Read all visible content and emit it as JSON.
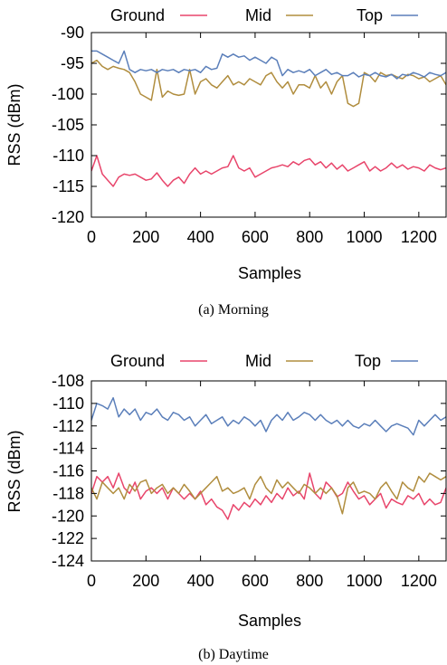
{
  "chart_data": [
    {
      "type": "line",
      "caption": "(a) Morning",
      "xlabel": "Samples",
      "ylabel": "RSS (dBm)",
      "xlim": [
        0,
        1300
      ],
      "ylim": [
        -120,
        -90
      ],
      "xticks": [
        0,
        200,
        400,
        600,
        800,
        1000,
        1200
      ],
      "yticks": [
        -90,
        -95,
        -100,
        -105,
        -110,
        -115,
        -120
      ],
      "legend_position": "top",
      "grid": false,
      "x": [
        0,
        20,
        40,
        60,
        80,
        100,
        120,
        140,
        160,
        180,
        200,
        220,
        240,
        260,
        280,
        300,
        320,
        340,
        360,
        380,
        400,
        420,
        440,
        460,
        480,
        500,
        520,
        540,
        560,
        580,
        600,
        620,
        640,
        660,
        680,
        700,
        720,
        740,
        760,
        780,
        800,
        820,
        840,
        860,
        880,
        900,
        920,
        940,
        960,
        980,
        1000,
        1020,
        1040,
        1060,
        1080,
        1100,
        1120,
        1140,
        1160,
        1180,
        1200,
        1220,
        1240,
        1260,
        1280,
        1300
      ],
      "series": [
        {
          "name": "Ground",
          "color": "#e8456b",
          "values": [
            -112.5,
            -110,
            -113,
            -114,
            -115,
            -113.5,
            -113,
            -113.2,
            -113,
            -113.5,
            -114,
            -113.8,
            -112.8,
            -114,
            -115,
            -114,
            -113.5,
            -114.5,
            -113,
            -112,
            -113,
            -112.5,
            -113,
            -112.5,
            -112,
            -111.8,
            -110,
            -112,
            -112.5,
            -112,
            -113.5,
            -113,
            -112.5,
            -112,
            -111.8,
            -111.5,
            -111.8,
            -111,
            -111.5,
            -110.8,
            -110.5,
            -111.5,
            -111,
            -112,
            -111.2,
            -112.2,
            -111.5,
            -112.5,
            -112,
            -111.5,
            -111,
            -112.5,
            -111.8,
            -112.5,
            -112,
            -111.2,
            -112,
            -111.5,
            -112.2,
            -111.8,
            -112,
            -112.5,
            -111.5,
            -112,
            -112.3,
            -112
          ]
        },
        {
          "name": "Mid",
          "color": "#b08d3e",
          "values": [
            -95,
            -94.5,
            -95.5,
            -96,
            -95.5,
            -95.8,
            -96,
            -96.5,
            -98,
            -100,
            -100.5,
            -101,
            -96,
            -100.5,
            -99.5,
            -100,
            -100.2,
            -100,
            -96,
            -100,
            -98,
            -97.5,
            -98.5,
            -99,
            -98,
            -97,
            -98.5,
            -98,
            -98.5,
            -97.5,
            -98,
            -98.5,
            -97,
            -96.5,
            -98,
            -99,
            -98,
            -100,
            -98.5,
            -98.5,
            -99,
            -97,
            -99,
            -98,
            -100,
            -98,
            -97,
            -101.5,
            -102,
            -101.5,
            -96.5,
            -97,
            -98,
            -96.5,
            -97,
            -96.8,
            -97.2,
            -97.5,
            -96.8,
            -97,
            -97.5,
            -97.2,
            -98,
            -97.5,
            -97,
            -98.5
          ]
        },
        {
          "name": "Top",
          "color": "#5b7fba",
          "values": [
            -93,
            -93,
            -93.5,
            -94,
            -94.5,
            -95,
            -93,
            -96,
            -96.5,
            -96,
            -96.2,
            -96,
            -96.5,
            -96,
            -96.2,
            -96,
            -96.5,
            -96,
            -96.2,
            -96,
            -96.5,
            -95.5,
            -96,
            -95.8,
            -93.5,
            -94,
            -93.5,
            -94,
            -93.8,
            -94.5,
            -94,
            -94.5,
            -95,
            -94,
            -94.5,
            -97,
            -96,
            -96.5,
            -96.2,
            -96.5,
            -96,
            -97,
            -96.5,
            -96,
            -96.8,
            -96.5,
            -97,
            -97,
            -96.5,
            -97.2,
            -96.8,
            -97,
            -96.5,
            -97,
            -97.2,
            -96.8,
            -97.5,
            -96.8,
            -97,
            -96.5,
            -96.8,
            -97.2,
            -96.5,
            -96.8,
            -97,
            -96.5
          ]
        }
      ]
    },
    {
      "type": "line",
      "caption": "(b) Daytime",
      "xlabel": "Samples",
      "ylabel": "RSS (dBm)",
      "xlim": [
        0,
        1300
      ],
      "ylim": [
        -124,
        -108
      ],
      "xticks": [
        0,
        200,
        400,
        600,
        800,
        1000,
        1200
      ],
      "yticks": [
        -108,
        -110,
        -112,
        -114,
        -116,
        -118,
        -120,
        -122,
        -124
      ],
      "legend_position": "top",
      "grid": false,
      "x": [
        0,
        20,
        40,
        60,
        80,
        100,
        120,
        140,
        160,
        180,
        200,
        220,
        240,
        260,
        280,
        300,
        320,
        340,
        360,
        380,
        400,
        420,
        440,
        460,
        480,
        500,
        520,
        540,
        560,
        580,
        600,
        620,
        640,
        660,
        680,
        700,
        720,
        740,
        760,
        780,
        800,
        820,
        840,
        860,
        880,
        900,
        920,
        940,
        960,
        980,
        1000,
        1020,
        1040,
        1060,
        1080,
        1100,
        1120,
        1140,
        1160,
        1180,
        1200,
        1220,
        1240,
        1260,
        1280,
        1300
      ],
      "series": [
        {
          "name": "Ground",
          "color": "#e8456b",
          "values": [
            -118,
            -116.5,
            -117,
            -116.5,
            -117.5,
            -116.2,
            -117.5,
            -118,
            -117,
            -118.5,
            -117.8,
            -117.5,
            -118,
            -117.5,
            -118.5,
            -117.5,
            -118,
            -118.5,
            -118,
            -118.5,
            -117.8,
            -119,
            -118.5,
            -119.2,
            -119.5,
            -120.3,
            -119,
            -119.5,
            -118.8,
            -119.2,
            -118.5,
            -119,
            -118.2,
            -118.8,
            -118,
            -118.5,
            -117.5,
            -118.2,
            -117.8,
            -118.5,
            -116.2,
            -118,
            -118.5,
            -117,
            -117.5,
            -118.3,
            -118,
            -117,
            -117.8,
            -118.5,
            -118.2,
            -119,
            -118.5,
            -118,
            -119.3,
            -118.5,
            -118.8,
            -119,
            -118.2,
            -118.5,
            -118,
            -119,
            -118.5,
            -119,
            -118.8,
            -117.5
          ]
        },
        {
          "name": "Mid",
          "color": "#b08d3e",
          "values": [
            -117.5,
            -118.5,
            -117,
            -117.5,
            -118,
            -117.5,
            -118.5,
            -117.2,
            -117.8,
            -117,
            -116.8,
            -118,
            -117.5,
            -117.2,
            -118,
            -117.5,
            -118,
            -117.2,
            -117.8,
            -118.5,
            -118,
            -117.5,
            -117,
            -116.5,
            -117.8,
            -117.5,
            -118,
            -117.8,
            -117.5,
            -118.5,
            -117.2,
            -116.5,
            -117.5,
            -118,
            -116.8,
            -117.5,
            -117,
            -117.5,
            -118,
            -117.2,
            -117.5,
            -118,
            -117.5,
            -118,
            -117.5,
            -118.2,
            -119.8,
            -117.5,
            -117,
            -118,
            -117.8,
            -118,
            -118.5,
            -117.5,
            -117,
            -117.8,
            -118.5,
            -117,
            -117.5,
            -117.8,
            -116.5,
            -117,
            -116.2,
            -116.5,
            -116.8,
            -116.5
          ]
        },
        {
          "name": "Top",
          "color": "#5b7fba",
          "values": [
            -111.5,
            -110,
            -110.2,
            -110.5,
            -109.5,
            -111.2,
            -110.5,
            -111,
            -110.5,
            -111.5,
            -110.8,
            -111,
            -110.5,
            -111.2,
            -111.5,
            -110.8,
            -111,
            -111.5,
            -111.2,
            -112,
            -111.5,
            -111,
            -111.8,
            -111.5,
            -111.2,
            -112,
            -111.5,
            -111.8,
            -111.2,
            -111.5,
            -112,
            -111.5,
            -112.5,
            -111.5,
            -111,
            -111.5,
            -110.8,
            -111.5,
            -111.2,
            -110.8,
            -111,
            -111.5,
            -111,
            -111.5,
            -111.8,
            -111.5,
            -112,
            -111.5,
            -112,
            -112.2,
            -111.8,
            -112,
            -111.5,
            -112,
            -112.5,
            -112,
            -111.8,
            -112,
            -112.2,
            -112.8,
            -111.5,
            -112,
            -111.5,
            -111,
            -111.5,
            -111.2
          ]
        }
      ]
    }
  ]
}
